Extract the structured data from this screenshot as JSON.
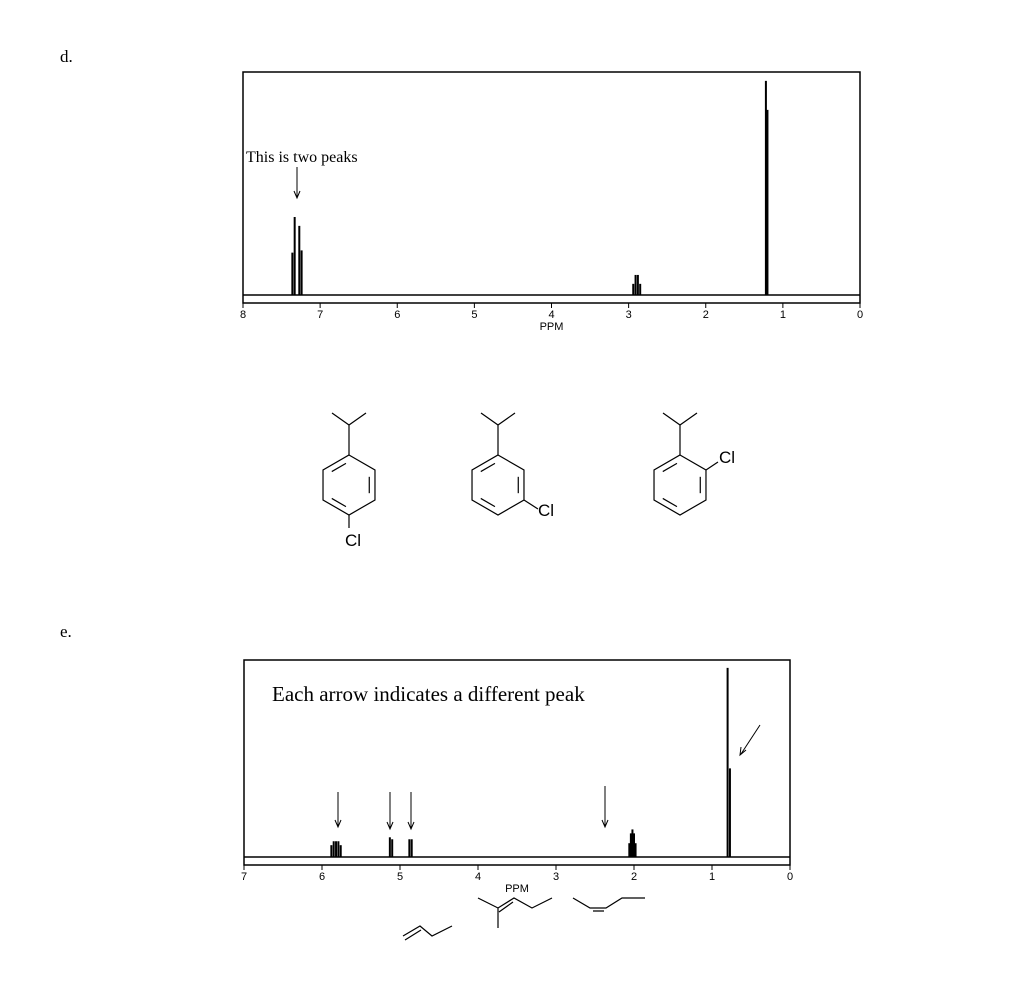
{
  "spectra": [
    {
      "label": "d.",
      "annotation": "This is two peaks",
      "xlabel": "PPM",
      "xlim": [
        8,
        0
      ],
      "xticks": [
        8,
        7,
        6,
        5,
        4,
        3,
        2,
        1,
        0
      ],
      "ylim": [
        0,
        100
      ],
      "peaks": {
        "ppm": [
          7.36,
          7.33,
          7.27,
          7.24,
          2.94,
          2.91,
          2.88,
          2.85,
          1.22,
          1.2
        ],
        "intensity": [
          19,
          35,
          31,
          20,
          5,
          9,
          9,
          5,
          96,
          83
        ]
      },
      "substituent_labels": [
        "Cl",
        "Cl",
        "Cl"
      ]
    },
    {
      "label": "e.",
      "annotation": "Each arrow indicates a different peak",
      "xlabel": "PPM",
      "xlim": [
        7,
        0
      ],
      "xticks": [
        7,
        6,
        5,
        4,
        3,
        2,
        1,
        0
      ],
      "ylim": [
        0,
        100
      ],
      "peaks": {
        "ppm": [
          5.88,
          5.85,
          5.82,
          5.79,
          5.76,
          5.13,
          5.1,
          4.88,
          4.85,
          2.06,
          2.04,
          2.02,
          2.0,
          1.98,
          0.8,
          0.77
        ],
        "intensity": [
          6,
          8,
          8,
          8,
          6,
          10,
          9,
          9,
          9,
          7,
          12,
          14,
          12,
          7,
          96,
          45
        ]
      }
    }
  ]
}
